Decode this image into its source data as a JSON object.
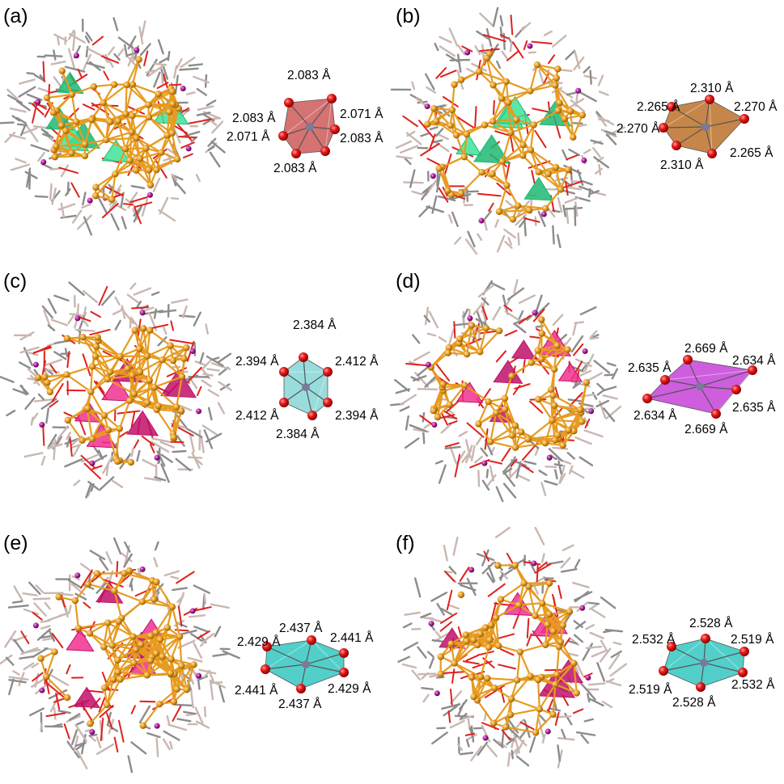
{
  "panels": [
    {
      "label": "(a)",
      "distances": [
        "2.083 Å",
        "2.083 Å",
        "2.071 Å",
        "2.071 Å",
        "2.083 Å",
        "2.083 Å"
      ]
    },
    {
      "label": "(b)",
      "distances": [
        "2.310 Å",
        "2.265 Å",
        "2.270 Å",
        "2.270 Å",
        "2.265 Å",
        "2.310 Å"
      ]
    },
    {
      "label": "(c)",
      "distances": [
        "2.384 Å",
        "2.394 Å",
        "2.412 Å",
        "2.412 Å",
        "2.394 Å",
        "2.384 Å"
      ]
    },
    {
      "label": "(d)",
      "distances": [
        "2.669 Å",
        "2.635 Å",
        "2.634 Å",
        "2.634 Å",
        "2.635 Å",
        "2.669 Å"
      ]
    },
    {
      "label": "(e)",
      "distances": [
        "2.437 Å",
        "2.429 Å",
        "2.441 Å",
        "2.441 Å",
        "2.429 Å",
        "2.437 Å"
      ]
    },
    {
      "label": "(f)",
      "distances": [
        "2.528 Å",
        "2.532 Å",
        "2.519 Å",
        "2.519 Å",
        "2.532 Å",
        "2.528 Å"
      ]
    }
  ]
}
